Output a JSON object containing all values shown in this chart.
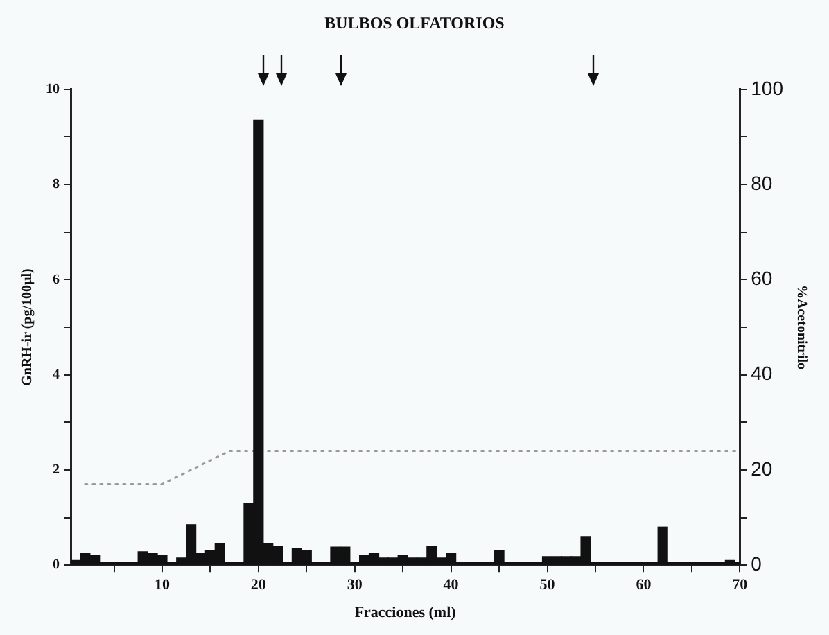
{
  "chart_data": {
    "type": "bar",
    "title": "BULBOS OLFATORIOS",
    "xlabel": "Fracciones (ml)",
    "ylabel": "GnRH-ir (pg/100µl)",
    "y2label": "%Acetonitrilo",
    "xlim": [
      0.5,
      70
    ],
    "xticks": [
      {
        "value": 5,
        "label": null
      },
      10,
      {
        "value": 15,
        "label": null
      },
      20,
      {
        "value": 25,
        "label": null
      },
      30,
      {
        "value": 35,
        "label": null
      },
      40,
      {
        "value": 45,
        "label": null
      },
      50,
      {
        "value": 55,
        "label": null
      },
      60,
      {
        "value": 65,
        "label": null
      },
      70
    ],
    "ylim": [
      0,
      10
    ],
    "yticks": [
      0,
      {
        "value": 1,
        "label": null
      },
      2,
      {
        "value": 3,
        "label": null
      },
      4,
      {
        "value": 5,
        "label": null
      },
      6,
      {
        "value": 7,
        "label": null
      },
      8,
      {
        "value": 9,
        "label": null
      },
      10
    ],
    "y2lim": [
      0,
      100
    ],
    "y2ticks": [
      0,
      {
        "value": 10,
        "label": null
      },
      20,
      {
        "value": 30,
        "label": null
      },
      40,
      {
        "value": 50,
        "label": null
      },
      60,
      {
        "value": 70,
        "label": null
      },
      80,
      {
        "value": 90,
        "label": null
      },
      100
    ],
    "grid": false,
    "legend": false,
    "marker": "none",
    "series": [
      {
        "color": "#111111",
        "x": [
          1,
          2,
          3,
          4,
          5,
          6,
          7,
          8,
          9,
          10,
          11,
          12,
          13,
          14,
          15,
          16,
          17,
          18,
          19,
          20,
          21,
          22,
          23,
          24,
          25,
          26,
          27,
          28,
          29,
          30,
          31,
          32,
          33,
          34,
          35,
          36,
          37,
          38,
          39,
          40,
          41,
          42,
          43,
          44,
          45,
          46,
          47,
          48,
          49,
          50,
          51,
          52,
          53,
          54,
          55,
          56,
          57,
          58,
          59,
          60,
          61,
          62,
          63,
          64,
          65,
          66,
          67,
          68,
          69,
          70
        ],
        "values": [
          0.1,
          0.25,
          0.2,
          0.05,
          0.05,
          0.05,
          0.05,
          0.28,
          0.25,
          0.2,
          0.05,
          0.15,
          0.85,
          0.25,
          0.3,
          0.45,
          0.05,
          0.05,
          1.3,
          9.35,
          0.45,
          0.4,
          0.05,
          0.35,
          0.3,
          0.05,
          0.05,
          0.38,
          0.38,
          0.05,
          0.2,
          0.25,
          0.15,
          0.15,
          0.2,
          0.15,
          0.15,
          0.4,
          0.15,
          0.25,
          0.05,
          0.05,
          0.05,
          0.05,
          0.3,
          0.05,
          0.05,
          0.05,
          0.05,
          0.18,
          0.18,
          0.18,
          0.18,
          0.6,
          0.05,
          0.05,
          0.05,
          0.05,
          0.05,
          0.05,
          0.05,
          0.8,
          0.05,
          0.05,
          0.05,
          0.05,
          0.05,
          0.05,
          0.1,
          0.05
        ]
      },
      {
        "type": "line",
        "axis": "y2",
        "color": "#999999",
        "line_style": "dotted",
        "x": [
          2,
          10,
          11.5,
          13,
          15,
          17,
          70
        ],
        "values": [
          17,
          17,
          18.5,
          20,
          22,
          24,
          24
        ]
      }
    ]
  }
}
